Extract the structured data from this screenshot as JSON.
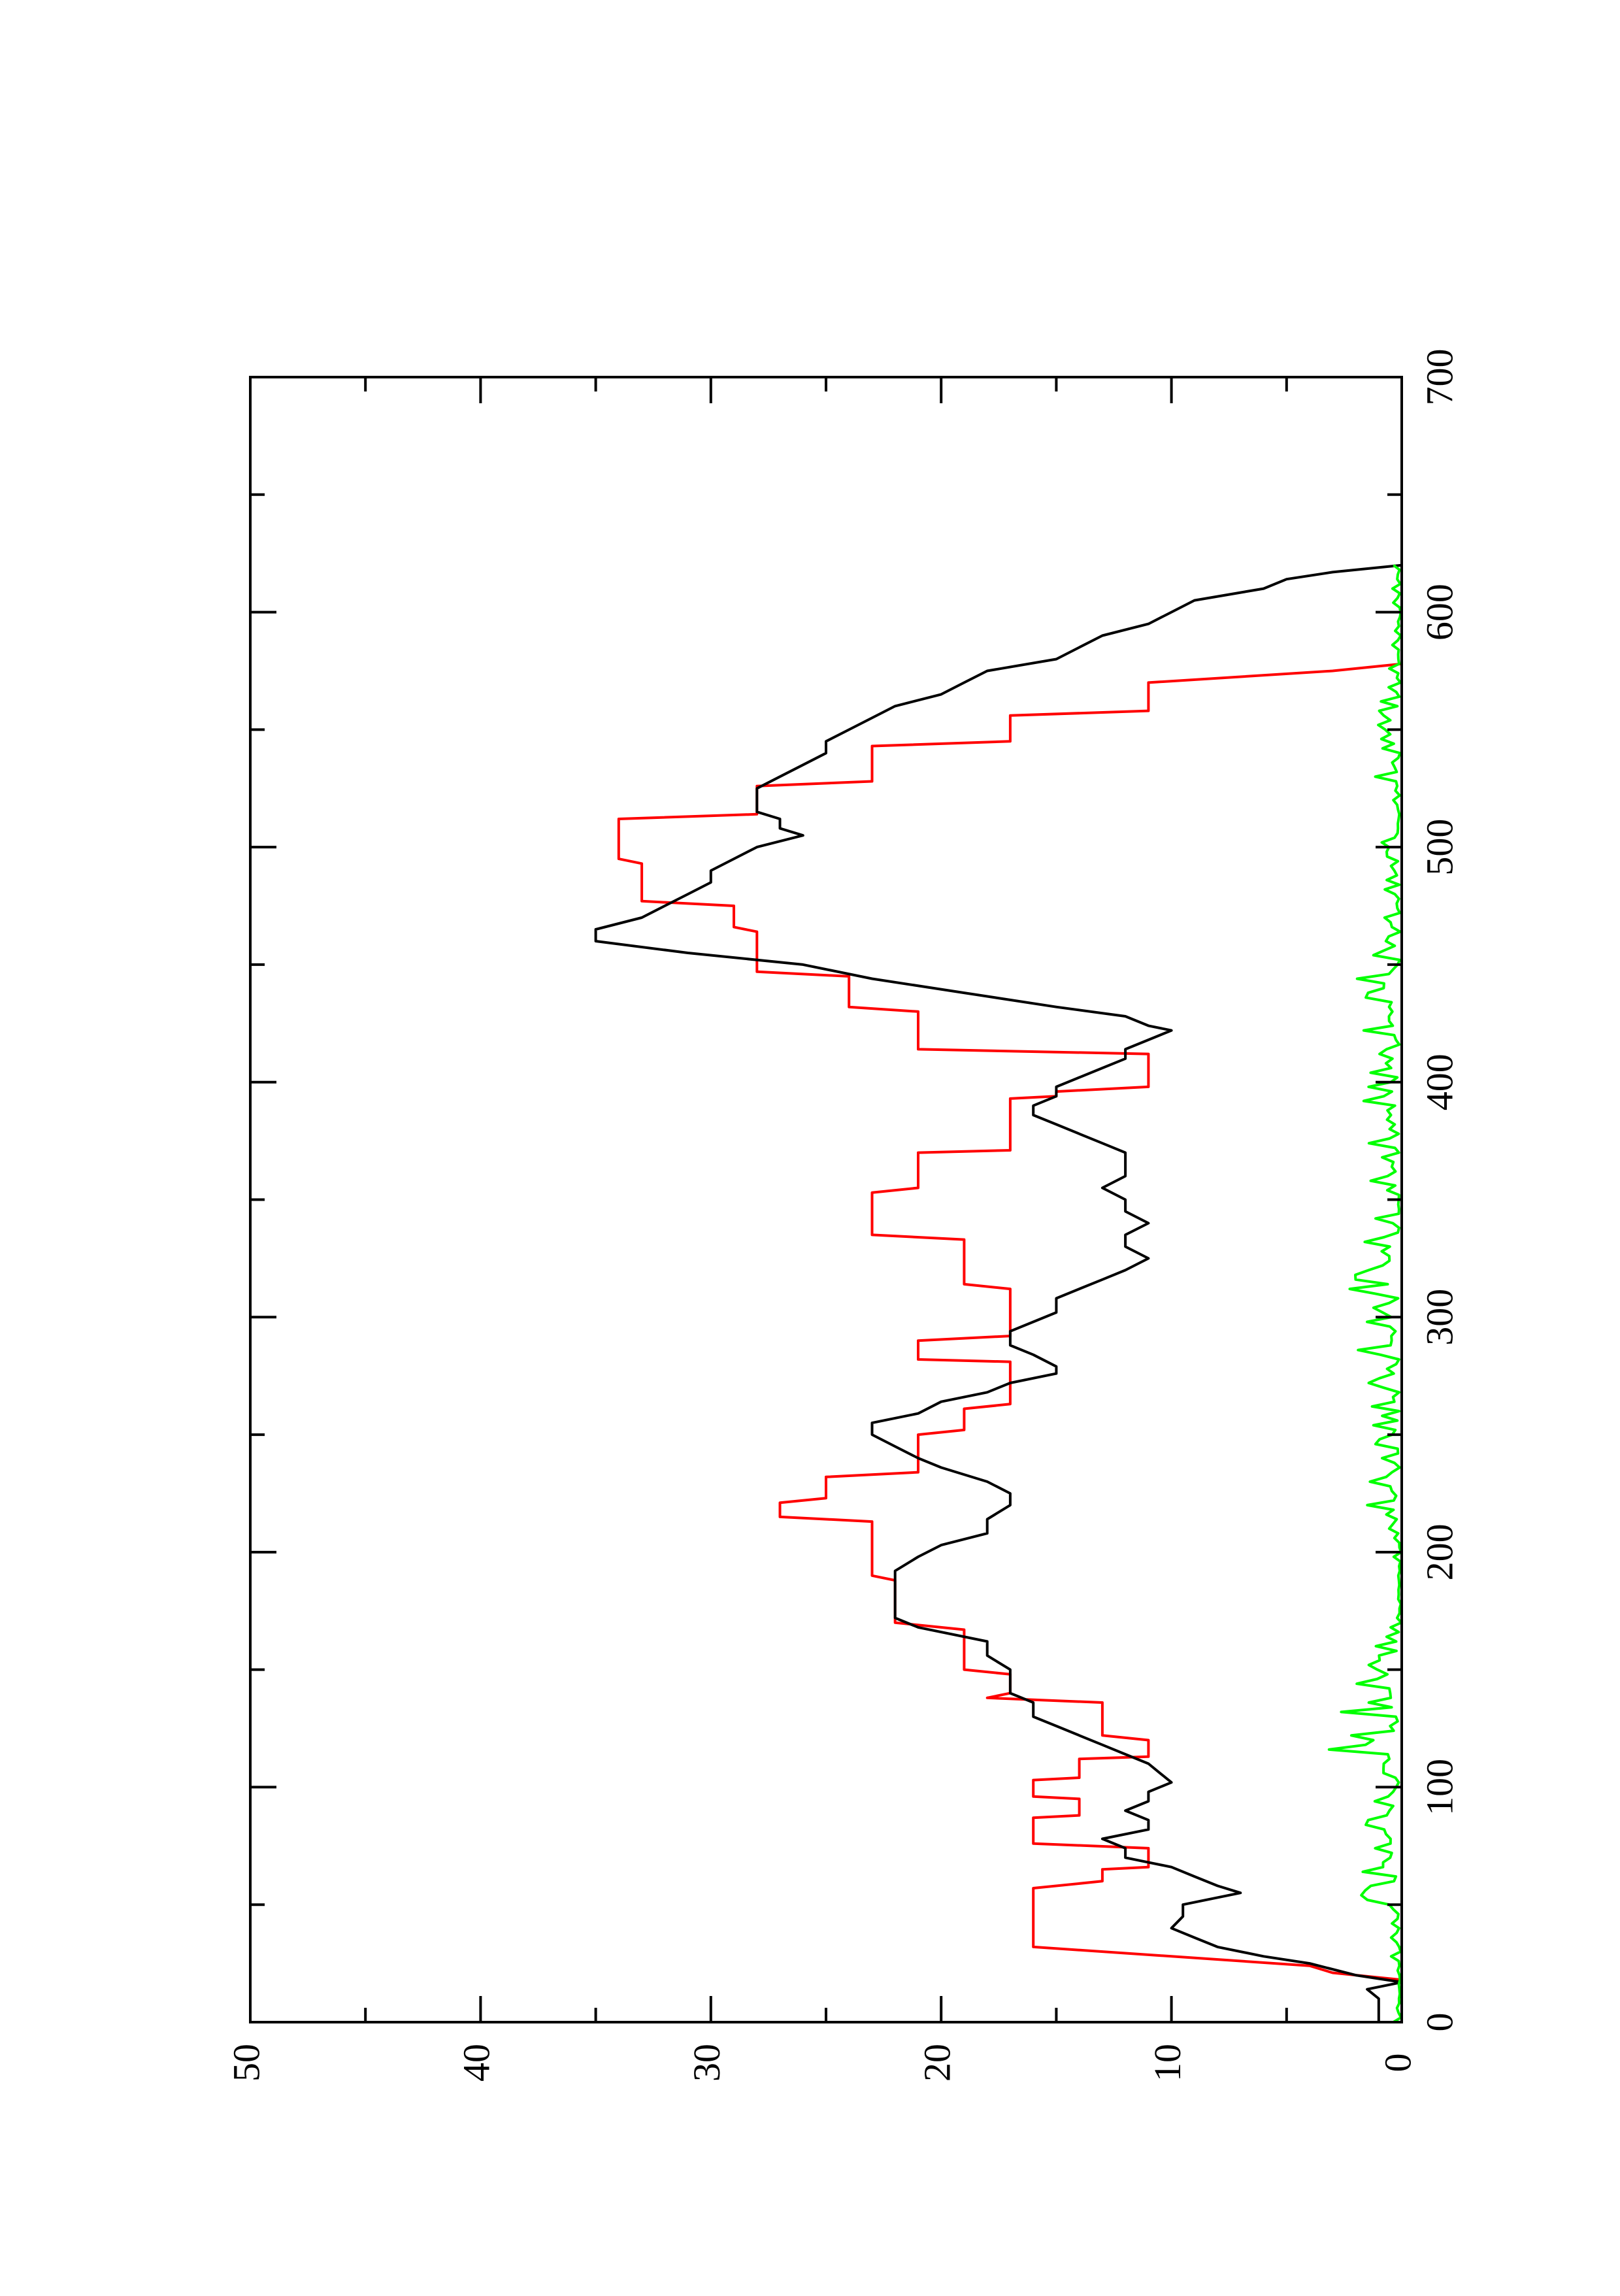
{
  "chart_data": {
    "type": "line",
    "title": "",
    "xlabel": "",
    "ylabel": "",
    "orientation": "rotated 90 degrees counter-clockwise (x axis runs vertically, y axis runs horizontally)",
    "xlim": [
      0,
      700
    ],
    "ylim": [
      0,
      50
    ],
    "x_ticks": [
      "0",
      "100",
      "200",
      "300",
      "400",
      "500",
      "600",
      "700"
    ],
    "y_ticks": [
      "0",
      "10",
      "20",
      "30",
      "40",
      "50"
    ],
    "x_minor_step": 50,
    "y_minor_step": 5,
    "grid": false,
    "legend": "none",
    "colors": {
      "axis": "#000000",
      "background": "#ffffff"
    },
    "series": [
      {
        "color": "#ff0000",
        "step": true,
        "points": [
          [
            0,
            0
          ],
          [
            18,
            0
          ],
          [
            21,
            3
          ],
          [
            24,
            4
          ],
          [
            28,
            10
          ],
          [
            32,
            16
          ],
          [
            57,
            16
          ],
          [
            60,
            13
          ],
          [
            65,
            13
          ],
          [
            66,
            11
          ],
          [
            74,
            11
          ],
          [
            76,
            16
          ],
          [
            87,
            16
          ],
          [
            88,
            14
          ],
          [
            95,
            14
          ],
          [
            96,
            16
          ],
          [
            103,
            16
          ],
          [
            104,
            14
          ],
          [
            112,
            14
          ],
          [
            113,
            11
          ],
          [
            120,
            11
          ],
          [
            122,
            13
          ],
          [
            136,
            13
          ],
          [
            138,
            18
          ],
          [
            140,
            17
          ],
          [
            148,
            17
          ],
          [
            150,
            19
          ],
          [
            167,
            19
          ],
          [
            170,
            22
          ],
          [
            188,
            22
          ],
          [
            190,
            23
          ],
          [
            213,
            23
          ],
          [
            215,
            27
          ],
          [
            221,
            27
          ],
          [
            223,
            25
          ],
          [
            232,
            25
          ],
          [
            234,
            21
          ],
          [
            250,
            21
          ],
          [
            252,
            19
          ],
          [
            261,
            19
          ],
          [
            263,
            17
          ],
          [
            281,
            17
          ],
          [
            282,
            21
          ],
          [
            290,
            21
          ],
          [
            292,
            17
          ],
          [
            312,
            17
          ],
          [
            314,
            19
          ],
          [
            333,
            19
          ],
          [
            335,
            23
          ],
          [
            353,
            23
          ],
          [
            355,
            21
          ],
          [
            370,
            21
          ],
          [
            371,
            17
          ],
          [
            393,
            17
          ],
          [
            394,
            15
          ],
          [
            396,
            15
          ],
          [
            398,
            11
          ],
          [
            412,
            11
          ],
          [
            414,
            21
          ],
          [
            430,
            21
          ],
          [
            432,
            24
          ],
          [
            445,
            24
          ],
          [
            447,
            28
          ],
          [
            464,
            28
          ],
          [
            466,
            29
          ],
          [
            475,
            29
          ],
          [
            477,
            33
          ],
          [
            493,
            33
          ],
          [
            495,
            34
          ],
          [
            512,
            34
          ],
          [
            514,
            28
          ],
          [
            526,
            28
          ],
          [
            528,
            23
          ],
          [
            543,
            23
          ],
          [
            545,
            17
          ],
          [
            556,
            17
          ],
          [
            558,
            11
          ],
          [
            570,
            11
          ],
          [
            575,
            3
          ],
          [
            578,
            0
          ],
          [
            620,
            0
          ]
        ]
      },
      {
        "color": "#000000",
        "step": false,
        "points": [
          [
            0,
            1
          ],
          [
            5,
            1
          ],
          [
            10,
            1
          ],
          [
            14,
            1.5
          ],
          [
            17,
            0
          ],
          [
            20,
            2
          ],
          [
            25,
            4
          ],
          [
            28,
            6
          ],
          [
            32,
            8
          ],
          [
            36,
            9
          ],
          [
            40,
            10
          ],
          [
            45,
            9.5
          ],
          [
            50,
            9.5
          ],
          [
            55,
            7
          ],
          [
            58,
            8
          ],
          [
            62,
            9
          ],
          [
            66,
            10
          ],
          [
            70,
            12
          ],
          [
            74,
            12
          ],
          [
            78,
            13
          ],
          [
            82,
            11
          ],
          [
            86,
            11
          ],
          [
            90,
            12
          ],
          [
            94,
            11
          ],
          [
            98,
            11
          ],
          [
            102,
            10
          ],
          [
            106,
            10.5
          ],
          [
            110,
            11
          ],
          [
            114,
            12
          ],
          [
            118,
            13
          ],
          [
            122,
            14
          ],
          [
            126,
            15
          ],
          [
            130,
            16
          ],
          [
            136,
            16
          ],
          [
            140,
            17
          ],
          [
            145,
            17
          ],
          [
            150,
            17
          ],
          [
            156,
            18
          ],
          [
            162,
            18
          ],
          [
            168,
            21
          ],
          [
            172,
            22
          ],
          [
            178,
            22
          ],
          [
            186,
            22
          ],
          [
            192,
            22
          ],
          [
            198,
            21
          ],
          [
            203,
            20
          ],
          [
            208,
            18
          ],
          [
            214,
            18
          ],
          [
            220,
            17
          ],
          [
            225,
            17
          ],
          [
            230,
            18
          ],
          [
            236,
            20
          ],
          [
            240,
            21
          ],
          [
            245,
            22
          ],
          [
            250,
            23
          ],
          [
            255,
            23
          ],
          [
            259,
            21
          ],
          [
            264,
            20
          ],
          [
            268,
            18
          ],
          [
            272,
            17
          ],
          [
            276,
            15
          ],
          [
            279,
            15
          ],
          [
            284,
            16
          ],
          [
            288,
            17
          ],
          [
            294,
            17
          ],
          [
            298,
            16
          ],
          [
            302,
            15
          ],
          [
            308,
            15
          ],
          [
            312,
            14
          ],
          [
            316,
            13
          ],
          [
            320,
            12
          ],
          [
            325,
            11
          ],
          [
            330,
            12
          ],
          [
            335,
            12
          ],
          [
            340,
            11
          ],
          [
            345,
            12
          ],
          [
            350,
            12
          ],
          [
            355,
            13
          ],
          [
            360,
            12
          ],
          [
            365,
            12
          ],
          [
            370,
            12
          ],
          [
            374,
            13
          ],
          [
            378,
            14
          ],
          [
            382,
            15
          ],
          [
            386,
            16
          ],
          [
            390,
            16
          ],
          [
            394,
            15
          ],
          [
            398,
            15
          ],
          [
            402,
            14
          ],
          [
            406,
            13
          ],
          [
            410,
            12
          ],
          [
            414,
            12
          ],
          [
            418,
            11
          ],
          [
            422,
            10
          ],
          [
            424,
            11
          ],
          [
            428,
            12
          ],
          [
            432,
            15
          ],
          [
            438,
            19
          ],
          [
            444,
            23
          ],
          [
            450,
            26
          ],
          [
            455,
            31
          ],
          [
            460,
            35
          ],
          [
            465,
            35
          ],
          [
            470,
            33
          ],
          [
            475,
            32
          ],
          [
            480,
            31
          ],
          [
            485,
            30
          ],
          [
            490,
            30
          ],
          [
            495,
            29
          ],
          [
            500,
            28
          ],
          [
            505,
            26
          ],
          [
            508,
            27
          ],
          [
            512,
            27
          ],
          [
            515,
            28
          ],
          [
            520,
            28
          ],
          [
            525,
            28
          ],
          [
            530,
            27
          ],
          [
            535,
            26
          ],
          [
            540,
            25
          ],
          [
            545,
            25
          ],
          [
            550,
            24
          ],
          [
            555,
            23
          ],
          [
            560,
            22
          ],
          [
            565,
            20
          ],
          [
            570,
            19
          ],
          [
            575,
            18
          ],
          [
            580,
            15
          ],
          [
            585,
            14
          ],
          [
            590,
            13
          ],
          [
            595,
            11
          ],
          [
            600,
            10
          ],
          [
            605,
            9
          ],
          [
            610,
            6
          ],
          [
            614,
            5
          ],
          [
            617,
            3
          ],
          [
            620,
            0
          ]
        ]
      },
      {
        "color": "#00ff00",
        "step": false,
        "noisy": true,
        "seed": 17,
        "x_range": [
          0,
          620
        ],
        "envelope": [
          [
            0,
            0.4
          ],
          [
            40,
            0.7
          ],
          [
            60,
            2.5
          ],
          [
            100,
            2.0
          ],
          [
            110,
            3.5
          ],
          [
            150,
            2.0
          ],
          [
            170,
            0.4
          ],
          [
            200,
            0.4
          ],
          [
            220,
            1.8
          ],
          [
            250,
            1.2
          ],
          [
            290,
            2.5
          ],
          [
            330,
            2.4
          ],
          [
            360,
            1.5
          ],
          [
            380,
            2.0
          ],
          [
            400,
            1.5
          ],
          [
            430,
            1.8
          ],
          [
            440,
            2.3
          ],
          [
            460,
            0.8
          ],
          [
            500,
            0.8
          ],
          [
            520,
            1.5
          ],
          [
            550,
            1.2
          ],
          [
            580,
            0.6
          ],
          [
            620,
            0.6
          ]
        ]
      }
    ]
  }
}
